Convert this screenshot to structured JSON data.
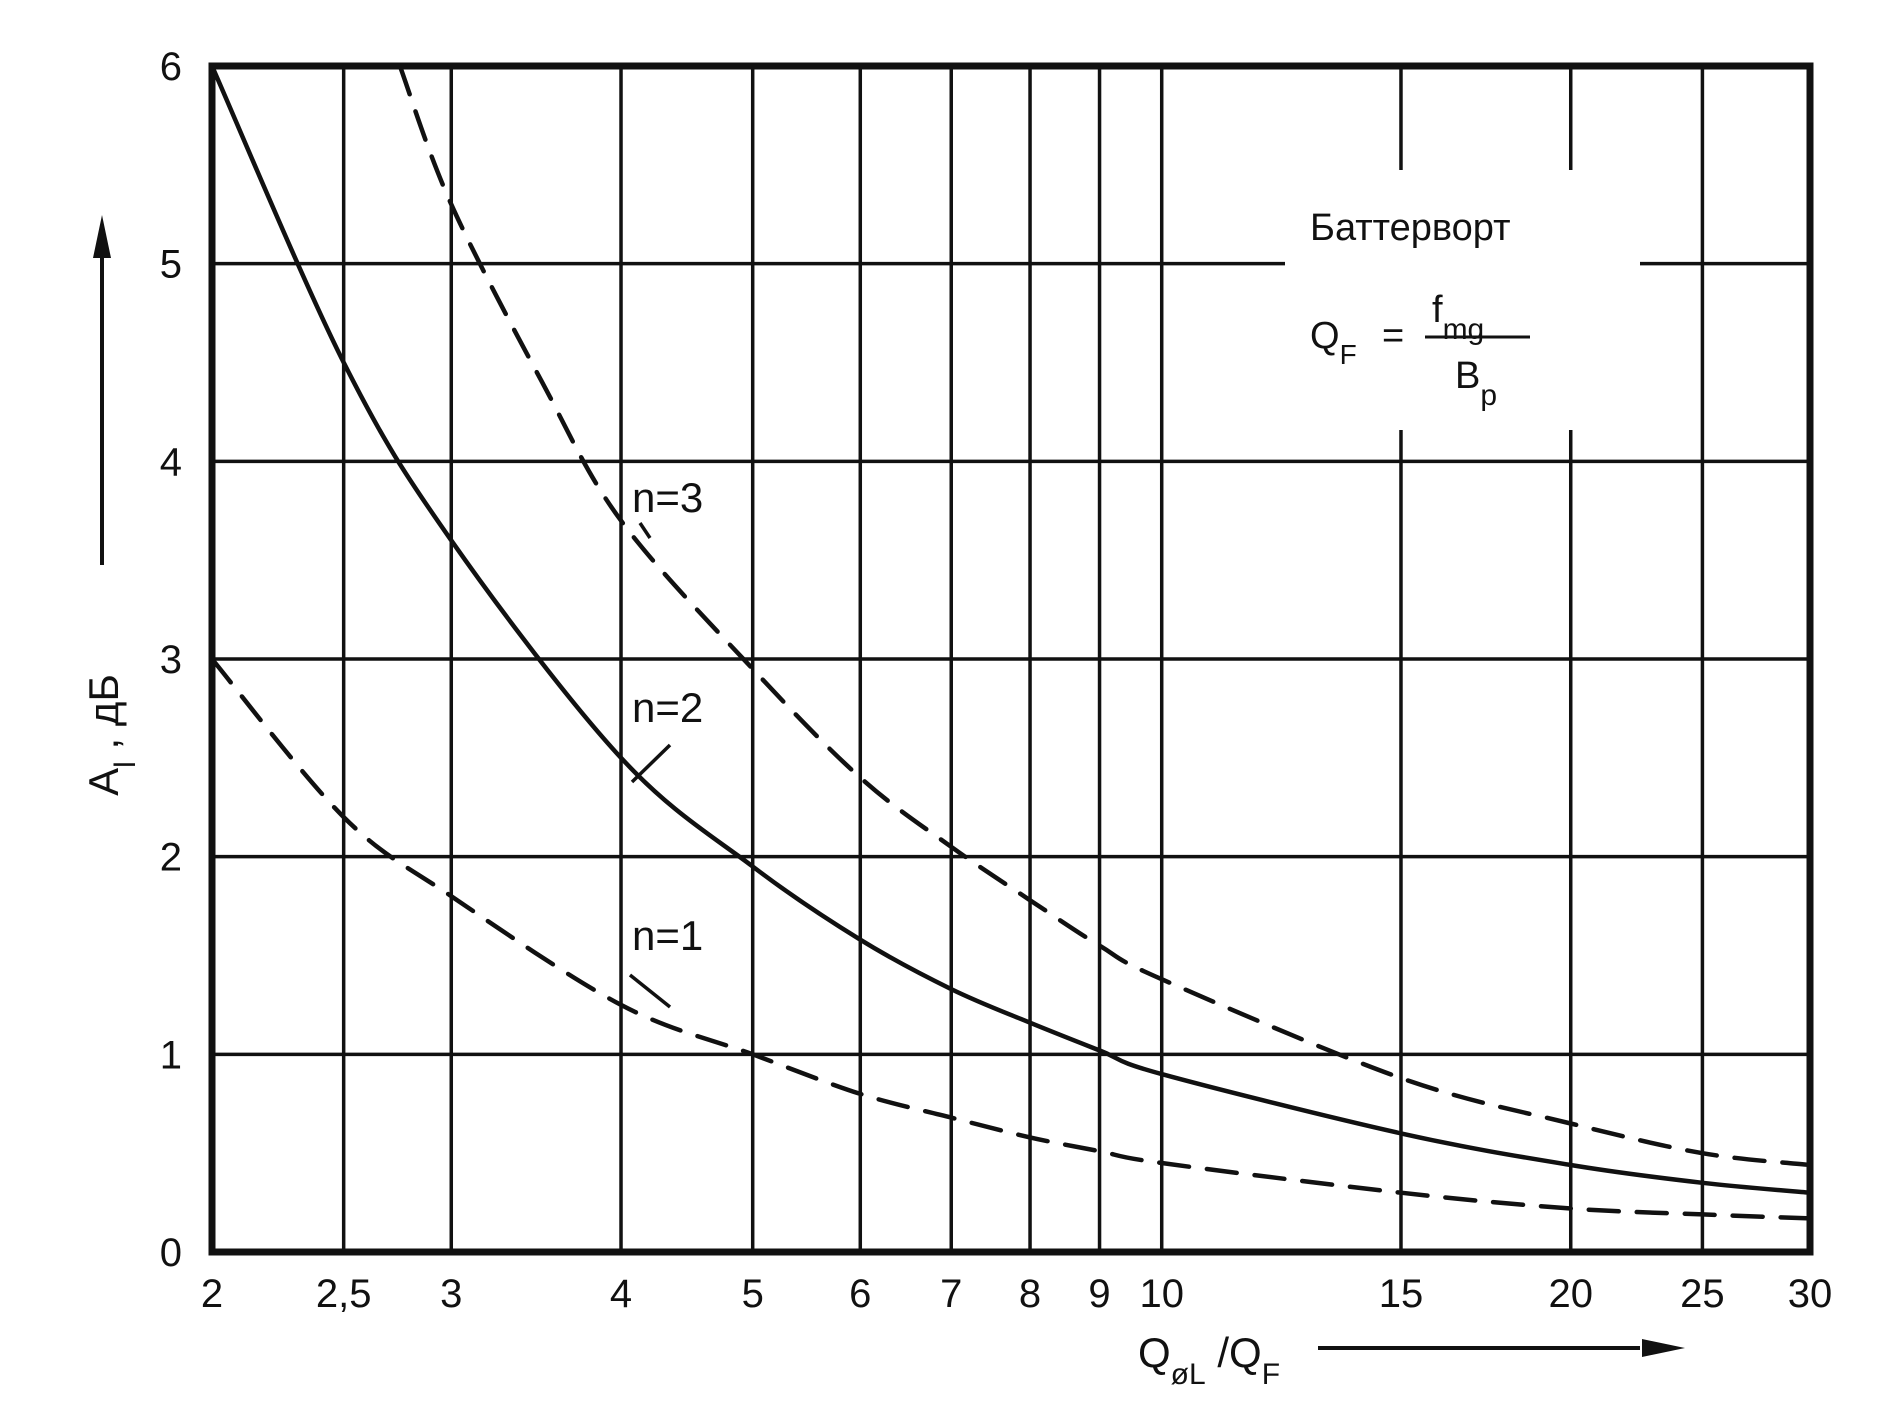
{
  "chart_data": {
    "type": "line",
    "title": "",
    "xlabel": "Q",
    "xlabel_sub": "øL",
    "xlabel_sep": " /Q",
    "xlabel_sub2": "F",
    "ylabel": "A",
    "ylabel_sub": "l",
    "ylabel_unit": " , дБ",
    "x_scale": "log",
    "xlim": [
      2,
      30
    ],
    "ylim": [
      0,
      6
    ],
    "x_ticks": [
      2,
      2.5,
      3,
      4,
      5,
      6,
      7,
      8,
      9,
      10,
      15,
      20,
      25,
      30
    ],
    "x_tick_labels": [
      "2",
      "2,5",
      "3",
      "4",
      "5",
      "6",
      "7",
      "8",
      "9",
      "10",
      "15",
      "20",
      "25",
      "30"
    ],
    "y_ticks": [
      0,
      1,
      2,
      3,
      4,
      5,
      6
    ],
    "y_tick_labels": [
      "0",
      "1",
      "2",
      "3",
      "4",
      "5",
      "6"
    ],
    "grid": true,
    "series": [
      {
        "name": "n=1",
        "style": "dashed",
        "x": [
          2,
          2.5,
          3,
          4,
          5,
          6,
          7,
          8,
          9,
          10,
          15,
          20,
          25,
          30
        ],
        "y": [
          3.0,
          2.2,
          1.8,
          1.25,
          1.0,
          0.8,
          0.68,
          0.58,
          0.51,
          0.45,
          0.3,
          0.22,
          0.19,
          0.17
        ]
      },
      {
        "name": "n=2",
        "style": "solid",
        "x": [
          2,
          2.5,
          3,
          4,
          5,
          6,
          7,
          8,
          9,
          10,
          15,
          20,
          25,
          30
        ],
        "y": [
          6.0,
          4.5,
          3.6,
          2.5,
          1.95,
          1.58,
          1.33,
          1.16,
          1.02,
          0.9,
          0.6,
          0.44,
          0.35,
          0.3
        ]
      },
      {
        "name": "n=3",
        "style": "dashed",
        "x": [
          2.75,
          3,
          3.5,
          4,
          5,
          6,
          7,
          8,
          9,
          10,
          15,
          20,
          25,
          30
        ],
        "y": [
          6.0,
          5.3,
          4.4,
          3.7,
          2.95,
          2.4,
          2.05,
          1.78,
          1.55,
          1.38,
          0.88,
          0.65,
          0.5,
          0.44
        ]
      }
    ],
    "annotation": {
      "name": "Баттерворт",
      "formula_lhs": "Q",
      "formula_lhs_sub": "F",
      "formula_eq": "=",
      "numerator": "f",
      "numerator_sub": "mg",
      "denominator": "B",
      "denominator_sub": "p"
    }
  },
  "colors": {
    "ink": "#111111",
    "background": "#ffffff"
  }
}
